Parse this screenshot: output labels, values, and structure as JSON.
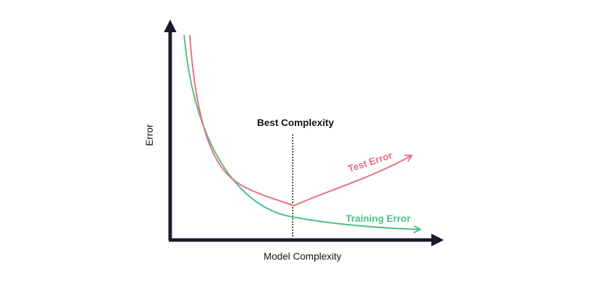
{
  "diagram": {
    "x_axis_label": "Model Complexity",
    "y_axis_label": "Error",
    "best_label": "Best Complexity",
    "test_label": "Test Error",
    "training_label": "Training Error"
  },
  "colors": {
    "axis": "#1b1b2b",
    "test": "#e8707e",
    "training": "#4cbf87",
    "text": "#111111",
    "divider": "#111111"
  }
}
